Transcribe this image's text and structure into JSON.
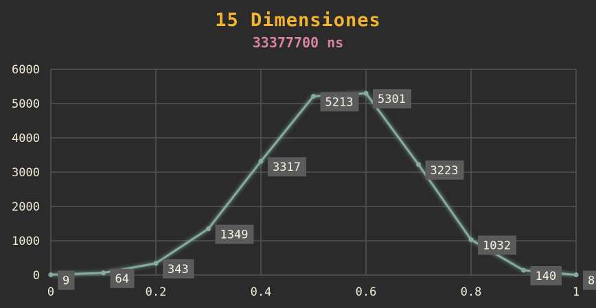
{
  "colors": {
    "background": "#2b2b2b",
    "title": "#f2b32e",
    "subtitle": "#d9849c",
    "grid": "#555555",
    "axis_text": "#f0ecd8",
    "line": "#84aca2",
    "label_box": "#5b5b5b",
    "label_text": "#f5f2e2"
  },
  "chart_data": {
    "type": "line",
    "title": "15 Dimensiones",
    "subtitle": "33377700 ns",
    "xlabel": "",
    "ylabel": "",
    "xlim": [
      0,
      1
    ],
    "ylim": [
      0,
      6000
    ],
    "x_ticks": [
      "0",
      "0.2",
      "0.4",
      "0.6",
      "0.8",
      "1"
    ],
    "y_ticks": [
      "0",
      "1000",
      "2000",
      "3000",
      "4000",
      "5000",
      "6000"
    ],
    "grid": true,
    "legend": "none",
    "series": [
      {
        "x": [
          0,
          0.1,
          0.2,
          0.3,
          0.4,
          0.5,
          0.6,
          0.7,
          0.8,
          0.9,
          1.0
        ],
        "values": [
          9,
          64,
          343,
          1349,
          3317,
          5213,
          5301,
          3223,
          1032,
          140,
          8
        ]
      }
    ]
  }
}
